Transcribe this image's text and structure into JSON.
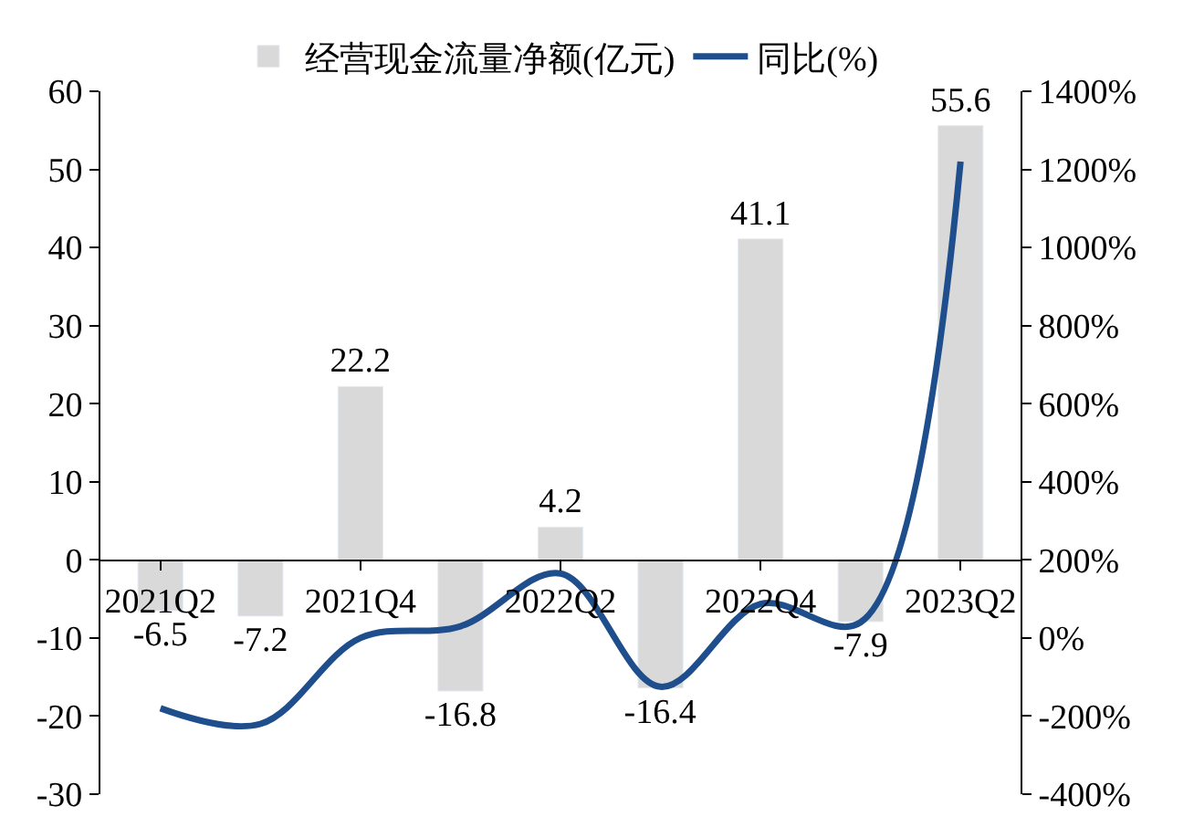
{
  "chart_data": {
    "type": "bar",
    "categories": [
      "2021Q2",
      null,
      "2021Q4",
      null,
      "2022Q2",
      null,
      "2022Q4",
      null,
      "2023Q2"
    ],
    "series": [
      {
        "name": "经营现金流量净额(亿元)",
        "color": "#d9d9d9",
        "values": [
          -6.5,
          -7.2,
          22.2,
          -16.8,
          4.2,
          -16.4,
          41.1,
          -7.9,
          55.6
        ],
        "value_labels": [
          "-6.5",
          "-7.2",
          "22.2",
          "-16.8",
          "4.2",
          "-16.4",
          "41.1",
          "-7.9",
          "55.6"
        ]
      },
      {
        "name": "同比(%)",
        "type": "line",
        "axis": "y2",
        "color": "#1f4e8c",
        "values": [
          -180,
          -220,
          0,
          30,
          165,
          -125,
          87,
          40,
          1220
        ]
      }
    ],
    "ylim": [
      -30,
      60
    ],
    "yticks": [
      -30,
      -20,
      -10,
      0,
      10,
      20,
      30,
      40,
      50,
      60
    ],
    "y2lim": [
      -400,
      1400
    ],
    "y2ticks": [
      {
        "value": -400,
        "label": "-400%"
      },
      {
        "value": -200,
        "label": "-200%"
      },
      {
        "value": 0,
        "label": "0%"
      },
      {
        "value": 200,
        "label": "200%"
      },
      {
        "value": 400,
        "label": "400%"
      },
      {
        "value": 600,
        "label": "600%"
      },
      {
        "value": 800,
        "label": "800%"
      },
      {
        "value": 1000,
        "label": "1000%"
      },
      {
        "value": 1200,
        "label": "1200%"
      },
      {
        "value": 1400,
        "label": "1400%"
      }
    ],
    "legend": "top",
    "marker": "none"
  }
}
